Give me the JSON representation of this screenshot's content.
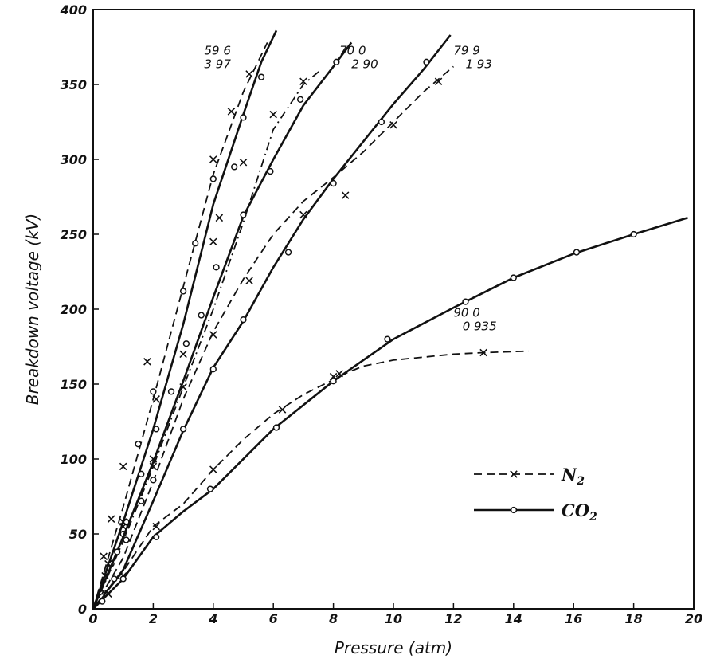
{
  "chart_data": {
    "type": "line",
    "xlabel": "Pressure (atm)",
    "ylabel": "Breakdown voltage  (kV)",
    "xlim": [
      0,
      20
    ],
    "ylim": [
      0,
      400
    ],
    "xticks": [
      "0",
      "2",
      "4",
      "6",
      "8",
      "10",
      "12",
      "14",
      "16",
      "18",
      "20"
    ],
    "yticks": [
      "0",
      "50",
      "100",
      "150",
      "200",
      "250",
      "300",
      "350",
      "400"
    ],
    "grid": false,
    "legend": {
      "placement": "bottom-right",
      "entries": [
        {
          "label": "N",
          "sub": "2",
          "style": "dashed",
          "marker": "x"
        },
        {
          "label": "CO",
          "sub": "2",
          "style": "solid",
          "marker": "o"
        }
      ]
    },
    "series": [
      {
        "gas": "N2",
        "style": "dashed",
        "marker": "x",
        "line": [
          [
            0,
            0
          ],
          [
            1,
            68
          ],
          [
            2,
            140
          ],
          [
            3,
            215
          ],
          [
            4,
            290
          ],
          [
            5,
            345
          ],
          [
            5.8,
            378
          ]
        ],
        "points": [
          [
            0.35,
            35
          ],
          [
            0.6,
            60
          ],
          [
            1,
            95
          ],
          [
            1.8,
            165
          ],
          [
            2.1,
            140
          ],
          [
            4,
            300
          ],
          [
            4.6,
            332
          ],
          [
            5.2,
            357
          ]
        ]
      },
      {
        "gas": "CO2",
        "style": "solid",
        "marker": "o",
        "line": [
          [
            0,
            0
          ],
          [
            1,
            58
          ],
          [
            2,
            120
          ],
          [
            3,
            190
          ],
          [
            4,
            270
          ],
          [
            5,
            330
          ],
          [
            5.6,
            365
          ],
          [
            6.1,
            386
          ]
        ],
        "points": [
          [
            0.3,
            10
          ],
          [
            0.6,
            30
          ],
          [
            1,
            50
          ],
          [
            1.5,
            110
          ],
          [
            2,
            145
          ],
          [
            3,
            212
          ],
          [
            3.4,
            244
          ],
          [
            4,
            287
          ],
          [
            4.7,
            295
          ],
          [
            5,
            328
          ],
          [
            5.6,
            355
          ]
        ]
      },
      {
        "gas": "N2",
        "style": "dash-dot",
        "marker": "x",
        "line": [
          [
            0,
            0
          ],
          [
            1,
            45
          ],
          [
            2,
            95
          ],
          [
            3,
            148
          ],
          [
            4,
            200
          ],
          [
            5,
            258
          ],
          [
            6,
            320
          ],
          [
            7,
            350
          ],
          [
            7.6,
            360
          ]
        ],
        "points": [
          [
            0.5,
            30
          ],
          [
            1,
            55
          ],
          [
            2,
            100
          ],
          [
            3,
            170
          ],
          [
            4,
            245
          ],
          [
            4.2,
            261
          ],
          [
            5,
            298
          ],
          [
            6,
            330
          ],
          [
            7,
            352
          ]
        ]
      },
      {
        "gas": "CO2",
        "style": "solid",
        "marker": "o",
        "line": [
          [
            0,
            0
          ],
          [
            1,
            48
          ],
          [
            2,
            98
          ],
          [
            3,
            152
          ],
          [
            4,
            208
          ],
          [
            5,
            262
          ],
          [
            6,
            300
          ],
          [
            7,
            336
          ],
          [
            8,
            362
          ],
          [
            8.6,
            378
          ]
        ],
        "points": [
          [
            0.3,
            10
          ],
          [
            0.8,
            38
          ],
          [
            1.1,
            58
          ],
          [
            1.6,
            90
          ],
          [
            2.1,
            120
          ],
          [
            2.6,
            145
          ],
          [
            3.1,
            177
          ],
          [
            3.6,
            196
          ],
          [
            4.1,
            228
          ],
          [
            5,
            263
          ],
          [
            5.9,
            292
          ],
          [
            6.9,
            340
          ],
          [
            8.1,
            365
          ]
        ]
      },
      {
        "gas": "N2",
        "style": "dashed",
        "marker": "x",
        "line": [
          [
            0,
            0
          ],
          [
            1,
            34
          ],
          [
            2,
            85
          ],
          [
            3,
            140
          ],
          [
            4,
            185
          ],
          [
            5,
            220
          ],
          [
            6,
            250
          ],
          [
            7,
            272
          ],
          [
            8,
            288
          ],
          [
            9,
            305
          ],
          [
            10,
            325
          ],
          [
            11,
            345
          ],
          [
            12,
            362
          ]
        ],
        "points": [
          [
            0.4,
            22
          ],
          [
            1,
            58
          ],
          [
            2,
            95
          ],
          [
            3,
            148
          ],
          [
            4,
            183
          ],
          [
            5.2,
            219
          ],
          [
            7,
            263
          ],
          [
            8.4,
            276
          ],
          [
            10,
            323
          ],
          [
            11.5,
            352
          ]
        ]
      },
      {
        "gas": "CO2",
        "style": "solid",
        "marker": "o",
        "line": [
          [
            0,
            0
          ],
          [
            1,
            26
          ],
          [
            2,
            72
          ],
          [
            3,
            119
          ],
          [
            4,
            161
          ],
          [
            5,
            192
          ],
          [
            6,
            228
          ],
          [
            7,
            260
          ],
          [
            8,
            287
          ],
          [
            9,
            312
          ],
          [
            10,
            337
          ],
          [
            11,
            360
          ],
          [
            11.9,
            383
          ]
        ],
        "points": [
          [
            0.3,
            8
          ],
          [
            0.7,
            20
          ],
          [
            1.1,
            46
          ],
          [
            1.6,
            72
          ],
          [
            2,
            86
          ],
          [
            3,
            120
          ],
          [
            4,
            160
          ],
          [
            5,
            193
          ],
          [
            6.5,
            238
          ],
          [
            8,
            284
          ],
          [
            9.6,
            325
          ],
          [
            11.1,
            365
          ]
        ]
      },
      {
        "gas": "N2",
        "style": "dashed",
        "marker": "x",
        "line": [
          [
            0,
            0
          ],
          [
            1,
            25
          ],
          [
            2,
            55
          ],
          [
            3,
            70
          ],
          [
            4,
            93
          ],
          [
            5,
            113
          ],
          [
            6,
            130
          ],
          [
            7,
            143
          ],
          [
            8,
            153
          ],
          [
            8.5,
            158
          ],
          [
            9,
            162
          ],
          [
            10,
            166
          ],
          [
            11,
            168
          ],
          [
            12,
            170
          ],
          [
            13,
            171
          ],
          [
            14.5,
            172
          ]
        ],
        "points": [
          [
            0.5,
            10
          ],
          [
            1,
            22
          ],
          [
            2.1,
            55
          ],
          [
            4,
            93
          ],
          [
            6.3,
            133
          ],
          [
            8,
            155
          ],
          [
            8.2,
            157
          ],
          [
            13,
            171
          ]
        ]
      },
      {
        "gas": "CO2",
        "style": "solid",
        "marker": "o",
        "line": [
          [
            0,
            0
          ],
          [
            1,
            20
          ],
          [
            2,
            48
          ],
          [
            3,
            65
          ],
          [
            4,
            80
          ],
          [
            6,
            120
          ],
          [
            8,
            152
          ],
          [
            10,
            180
          ],
          [
            12,
            201
          ],
          [
            14,
            221
          ],
          [
            16,
            237
          ],
          [
            18,
            250
          ],
          [
            19.8,
            261
          ]
        ],
        "points": [
          [
            0.3,
            5
          ],
          [
            1,
            20
          ],
          [
            2.1,
            48
          ],
          [
            3.9,
            80
          ],
          [
            6.1,
            121
          ],
          [
            8,
            152
          ],
          [
            9.8,
            180
          ],
          [
            12.4,
            205
          ],
          [
            14,
            221
          ],
          [
            16.1,
            238
          ],
          [
            18,
            250
          ]
        ]
      }
    ],
    "annotations": [
      {
        "text": "59 6",
        "x": 3.7,
        "y": 370
      },
      {
        "text": "3 97",
        "x": 3.7,
        "y": 361
      },
      {
        "text": "70 0",
        "x": 8.2,
        "y": 370
      },
      {
        "text": "2 90",
        "x": 8.6,
        "y": 361
      },
      {
        "text": "79 9",
        "x": 12.0,
        "y": 370
      },
      {
        "text": "1 93",
        "x": 12.4,
        "y": 361
      },
      {
        "text": "90 0",
        "x": 12.0,
        "y": 195
      },
      {
        "text": "0 935",
        "x": 12.3,
        "y": 186
      }
    ]
  }
}
